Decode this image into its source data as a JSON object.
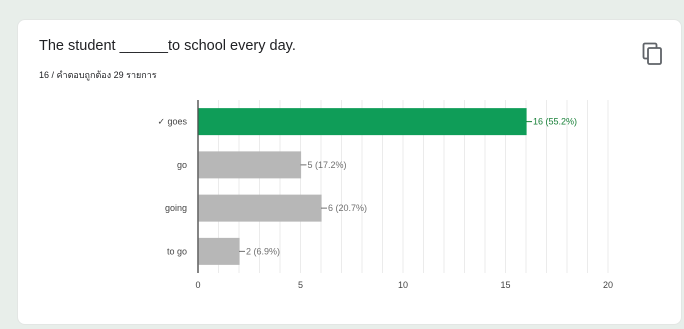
{
  "question": {
    "title": "The student ______to school every day.",
    "score_text": "16 / คำตอบถูกต้อง 29 รายการ"
  },
  "actions": {
    "copy_icon": "copy-icon"
  },
  "colors": {
    "correct_bar": "#0f9d58",
    "correct_label": "#188038",
    "other_bar": "#b7b7b7",
    "axis_label": "#444444",
    "value_label": "#6f6f6f",
    "grid": "#ebebeb"
  },
  "chart_data": {
    "type": "bar",
    "orientation": "horizontal",
    "categories": [
      "✓ goes",
      "go",
      "going",
      "to go"
    ],
    "values": [
      16,
      5,
      6,
      2
    ],
    "value_labels": [
      "16 (55.2%)",
      "5 (17.2%)",
      "6 (20.7%)",
      "2 (6.9%)"
    ],
    "correct_index": 0,
    "xlim": [
      0,
      20
    ],
    "xticks": [
      "0",
      "5",
      "10",
      "15",
      "20"
    ],
    "grid": true
  }
}
